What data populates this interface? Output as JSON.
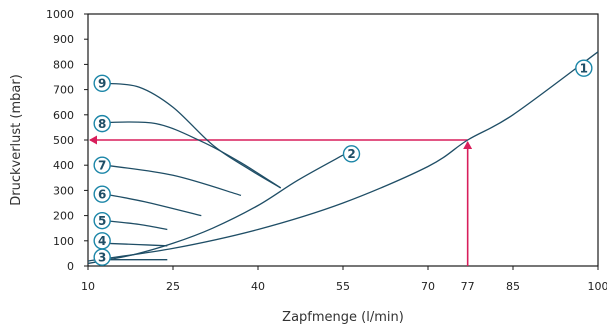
{
  "chart_data": {
    "type": "line",
    "xlabel": "Zapfmenge (l/min)",
    "ylabel": "Druckverlust (mbar)",
    "xlim": [
      10,
      100
    ],
    "ylim": [
      0,
      1000
    ],
    "x_ticks": [
      "10",
      "25",
      "40",
      "55",
      "70",
      "77",
      "85",
      "100"
    ],
    "y_ticks": [
      "0",
      "100",
      "200",
      "300",
      "400",
      "500",
      "600",
      "700",
      "800",
      "900",
      "1000"
    ],
    "grid": false,
    "highlight": {
      "x": 77,
      "y": 500,
      "x_label": "77",
      "y_label": "500",
      "color": "#d81e5b"
    },
    "line_color": "#1f4e66",
    "marker_color": "#1c86a8",
    "series": [
      {
        "label": "1",
        "points": [
          [
            10,
            20
          ],
          [
            25,
            70
          ],
          [
            40,
            145
          ],
          [
            55,
            250
          ],
          [
            70,
            395
          ],
          [
            77,
            500
          ],
          [
            85,
            600
          ],
          [
            100,
            850
          ]
        ],
        "label_at": [
          97.5,
          785
        ]
      },
      {
        "label": "2",
        "points": [
          [
            10,
            10
          ],
          [
            18,
            45
          ],
          [
            25,
            90
          ],
          [
            32,
            150
          ],
          [
            40,
            240
          ],
          [
            47,
            340
          ],
          [
            55,
            440
          ]
        ],
        "label_at": [
          56.5,
          445
        ]
      },
      {
        "label": "3",
        "points": [
          [
            13,
            25
          ],
          [
            24,
            25
          ]
        ],
        "label_at": [
          12.5,
          35
        ]
      },
      {
        "label": "4",
        "points": [
          [
            13,
            90
          ],
          [
            19,
            85
          ],
          [
            24,
            80
          ]
        ],
        "label_at": [
          12.5,
          100
        ]
      },
      {
        "label": "5",
        "points": [
          [
            13,
            180
          ],
          [
            19,
            165
          ],
          [
            24,
            145
          ]
        ],
        "label_at": [
          12.5,
          180
        ]
      },
      {
        "label": "6",
        "points": [
          [
            13,
            285
          ],
          [
            20,
            255
          ],
          [
            30,
            200
          ]
        ],
        "label_at": [
          12.5,
          285
        ]
      },
      {
        "label": "7",
        "points": [
          [
            13,
            400
          ],
          [
            25,
            360
          ],
          [
            37,
            280
          ]
        ],
        "label_at": [
          12.5,
          400
        ]
      },
      {
        "label": "8",
        "points": [
          [
            13,
            570
          ],
          [
            22,
            565
          ],
          [
            30,
            495
          ],
          [
            37,
            410
          ],
          [
            44,
            310
          ]
        ],
        "label_at": [
          12.5,
          565
        ]
      },
      {
        "label": "9",
        "points": [
          [
            13,
            725
          ],
          [
            19,
            710
          ],
          [
            25,
            630
          ],
          [
            32,
            480
          ],
          [
            38,
            390
          ],
          [
            44,
            310
          ]
        ],
        "label_at": [
          12.5,
          725
        ]
      }
    ]
  }
}
